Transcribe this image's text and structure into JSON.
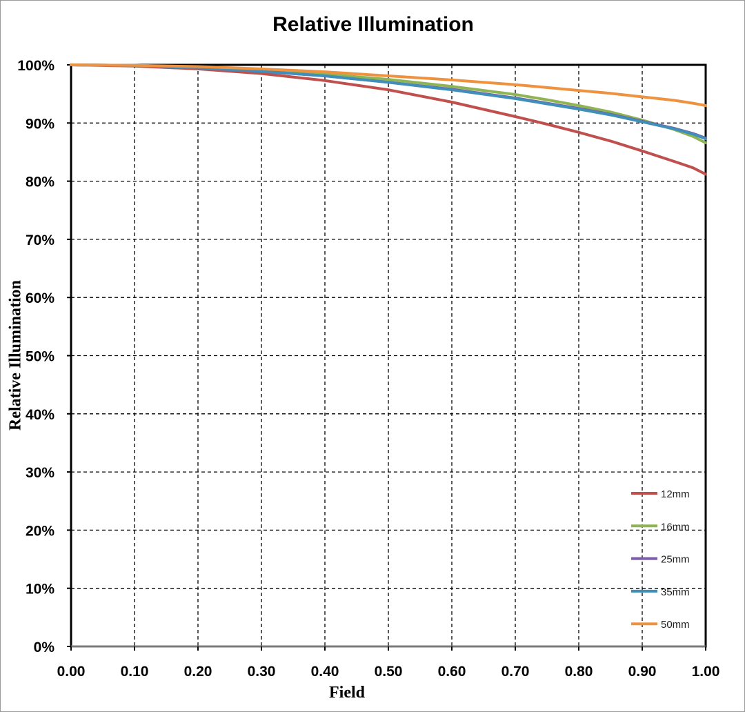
{
  "chart_data": {
    "type": "line",
    "title": "Relative Illumination",
    "xlabel": "Field",
    "ylabel": "Relative Illumination",
    "xlim": [
      0,
      1
    ],
    "ylim": [
      0,
      100
    ],
    "grid": true,
    "legend_position": "bottom-right",
    "x_ticks": [
      "0.00",
      "0.10",
      "0.20",
      "0.30",
      "0.40",
      "0.50",
      "0.60",
      "0.70",
      "0.80",
      "0.90",
      "1.00"
    ],
    "y_ticks": [
      "0%",
      "10%",
      "20%",
      "30%",
      "40%",
      "50%",
      "60%",
      "70%",
      "80%",
      "90%",
      "100%"
    ],
    "x": [
      0,
      0.1,
      0.2,
      0.3,
      0.4,
      0.5,
      0.6,
      0.7,
      0.75,
      0.8,
      0.85,
      0.9,
      0.95,
      0.98,
      1.0
    ],
    "series": [
      {
        "name": "12mm",
        "color": "#c0504d",
        "values": [
          100,
          99.8,
          99.3,
          98.5,
          97.3,
          95.7,
          93.6,
          91.1,
          89.8,
          88.4,
          86.9,
          85.2,
          83.4,
          82.3,
          81.2
        ]
      },
      {
        "name": "16mm",
        "color": "#8fb453",
        "values": [
          100,
          99.9,
          99.6,
          99.1,
          98.4,
          97.5,
          96.3,
          94.9,
          94.0,
          93.0,
          91.9,
          90.5,
          88.9,
          87.7,
          86.6
        ]
      },
      {
        "name": "25mm",
        "color": "#7b5aa6",
        "values": [
          100,
          99.9,
          99.5,
          98.9,
          98.1,
          97.0,
          95.8,
          94.3,
          93.4,
          92.5,
          91.5,
          90.3,
          89.1,
          88.2,
          87.4
        ]
      },
      {
        "name": "35mm",
        "color": "#3f8fba",
        "values": [
          100,
          99.9,
          99.5,
          98.9,
          98.1,
          97.0,
          95.7,
          94.2,
          93.3,
          92.4,
          91.4,
          90.2,
          89.0,
          88.1,
          87.3
        ]
      },
      {
        "name": "50mm",
        "color": "#ee9240",
        "values": [
          100,
          99.9,
          99.7,
          99.3,
          98.8,
          98.1,
          97.4,
          96.6,
          96.1,
          95.6,
          95.1,
          94.5,
          93.9,
          93.4,
          93.0
        ]
      }
    ]
  }
}
